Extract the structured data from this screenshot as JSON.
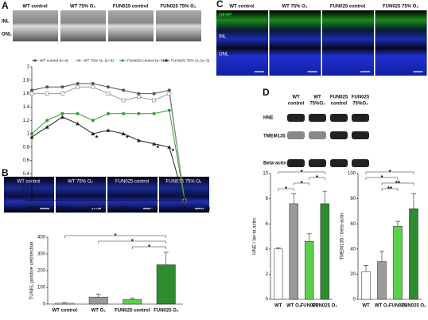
{
  "panel_labels": [
    "A",
    "B",
    "C",
    "D"
  ],
  "micrographs_A": {
    "columns": [
      "WT control",
      "WT 75% O₂",
      "FUN025 control",
      "FUN025 75% O₂"
    ],
    "rows": [
      "INL",
      "ONL"
    ]
  },
  "micrographs_B": {
    "columns": [
      "WT control",
      "WT 75% O₂",
      "FUN025 control",
      "FUN025 75% O₂"
    ]
  },
  "micrographs_C": {
    "columns": [
      "WT control",
      "WT 75% O₂",
      "FUN025 control",
      "FUN025 75% O₂"
    ],
    "stain": "GFAP",
    "rows": [
      "INL",
      "ONL"
    ]
  },
  "blots_D": {
    "columns": [
      [
        "WT",
        "control"
      ],
      [
        "WT",
        "75%O₂"
      ],
      [
        "FUN025",
        "control"
      ],
      [
        "FUN025",
        "75%O₂"
      ]
    ],
    "rows": [
      "HNE",
      "TMEM135",
      "Beta-actin"
    ]
  },
  "chart_data": [
    {
      "type": "line",
      "x_label": "(μm)",
      "categories": [
        "2000",
        null,
        "1600",
        null,
        "1200",
        null,
        "800",
        null,
        "400",
        null,
        "0"
      ],
      "series": [
        {
          "name": "WT control (n=4)",
          "color": "#555555",
          "values": [
            1.65,
            1.7,
            1.7,
            1.75,
            1.75,
            1.7,
            1.65,
            1.6,
            1.6,
            1.65,
            0
          ]
        },
        {
          "name": "WT 75% O₂ (n=3)",
          "color": "#999999",
          "values": [
            1.6,
            1.6,
            1.6,
            1.7,
            1.7,
            1.6,
            1.5,
            1.55,
            1.5,
            1.6,
            0
          ]
        },
        {
          "name": "FUN025 control (n=3)",
          "color": "#3a9a3a",
          "values": [
            1.0,
            1.2,
            1.3,
            1.3,
            1.2,
            1.3,
            1.3,
            1.3,
            1.3,
            1.35,
            0
          ]
        },
        {
          "name": "FUN025 75% O₂ (n=3)",
          "color": "#222222",
          "values": [
            0.95,
            1.1,
            1.25,
            1.15,
            1.0,
            1.05,
            1.0,
            0.9,
            0.85,
            0.8,
            0
          ]
        }
      ],
      "ylim": [
        0,
        2
      ],
      "yticks": [
        0,
        0.2,
        0.4,
        0.6,
        0.8,
        1,
        1.2,
        1.4,
        1.6,
        1.8,
        2
      ],
      "annotations": [
        "*",
        "*",
        "*",
        "*"
      ]
    },
    {
      "type": "bar",
      "y_label": "TUNEL positive cell/section",
      "categories": [
        "WT control",
        "WT O₂",
        "FUN025 control",
        "FUN025 O₂"
      ],
      "values": [
        5,
        42,
        28,
        235
      ],
      "errors": [
        3,
        18,
        8,
        75
      ],
      "colors": [
        "#ffffff",
        "#9a9a9a",
        "#5ad14a",
        "#2e8b2e"
      ],
      "ylim": [
        0,
        400
      ],
      "yticks": [
        0,
        100,
        200,
        300,
        400
      ],
      "annotations": [
        "*",
        "*",
        "*"
      ]
    },
    {
      "type": "bar",
      "y_label": "HNE / be-ta actin",
      "categories": [
        "WT",
        "WT O₂",
        "FUN025",
        "FUN025 O₂"
      ],
      "values": [
        4.0,
        7.6,
        4.6,
        7.6
      ],
      "errors": [
        0.1,
        0.8,
        0.6,
        1.0
      ],
      "colors": [
        "#ffffff",
        "#9a9a9a",
        "#5ad14a",
        "#2e8b2e"
      ],
      "ylim": [
        0,
        10
      ],
      "yticks": [
        0,
        2,
        4,
        6,
        8,
        10
      ],
      "annotations": [
        "*",
        "*",
        "*",
        "*"
      ]
    },
    {
      "type": "bar",
      "y_label": "TMEM135 / beta-actin",
      "categories": [
        "WT",
        "WT O₂",
        "FUN025",
        "FUN025 O₂"
      ],
      "values": [
        22,
        30,
        58,
        72
      ],
      "errors": [
        5,
        8,
        4,
        12
      ],
      "colors": [
        "#ffffff",
        "#9a9a9a",
        "#5ad14a",
        "#2e8b2e"
      ],
      "ylim": [
        0,
        100
      ],
      "yticks": [
        0,
        20,
        40,
        60,
        80,
        100
      ],
      "annotations": [
        "**",
        "**",
        "*",
        "*"
      ]
    }
  ]
}
